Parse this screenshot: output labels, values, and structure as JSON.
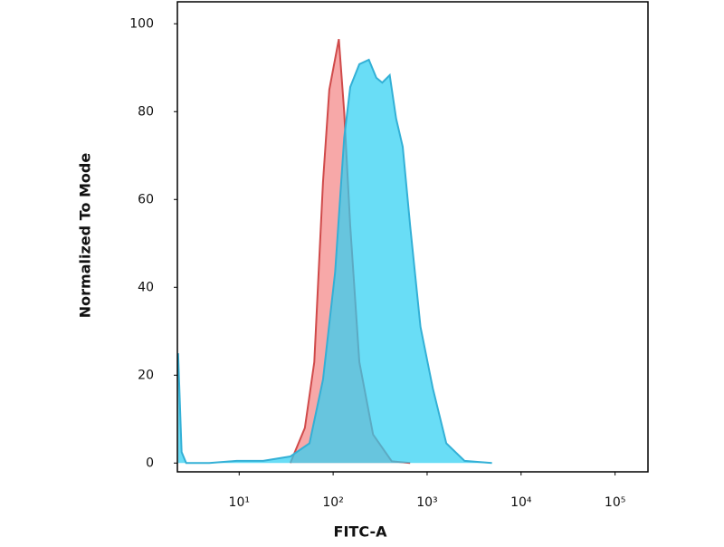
{
  "chart_data": {
    "type": "area",
    "xlabel": "FITC-A",
    "ylabel": "Normalized To Mode",
    "xscale": "log",
    "xlim": [
      2.2,
      224000
    ],
    "ylim": [
      -2,
      105
    ],
    "xticks": [
      {
        "value": 10,
        "label": "10¹"
      },
      {
        "value": 100,
        "label": "10²"
      },
      {
        "value": 1000,
        "label": "10³"
      },
      {
        "value": 10000,
        "label": "10⁴"
      },
      {
        "value": 100000,
        "label": "10⁵"
      }
    ],
    "yticks": [
      0,
      20,
      40,
      60,
      80,
      100
    ],
    "series": [
      {
        "color": "#d04a4a",
        "fill": "#f7a3a3",
        "x": [
          35,
          50,
          63,
          78,
          91,
          115,
          131,
          152,
          190,
          266,
          420,
          660
        ],
        "values": [
          0,
          8,
          23,
          64,
          85,
          96.5,
          80,
          54,
          23,
          6.5,
          0.4,
          0
        ]
      },
      {
        "color": "#33b0d6",
        "fill": "#2fd0f2",
        "x": [
          2.24,
          2.44,
          2.73,
          4.8,
          9.4,
          18,
          35,
          56,
          78,
          105,
          131,
          152,
          190,
          240,
          288,
          333,
          400,
          468,
          550,
          660,
          850,
          1150,
          1600,
          2500,
          4900
        ],
        "values": [
          25,
          2.5,
          0,
          0,
          0.5,
          0.5,
          1.5,
          4.5,
          19,
          43.5,
          74,
          85.6,
          90.8,
          91.8,
          87.7,
          86.6,
          88.3,
          78.4,
          72,
          54,
          31,
          17,
          4.5,
          0.5,
          0
        ]
      }
    ]
  }
}
